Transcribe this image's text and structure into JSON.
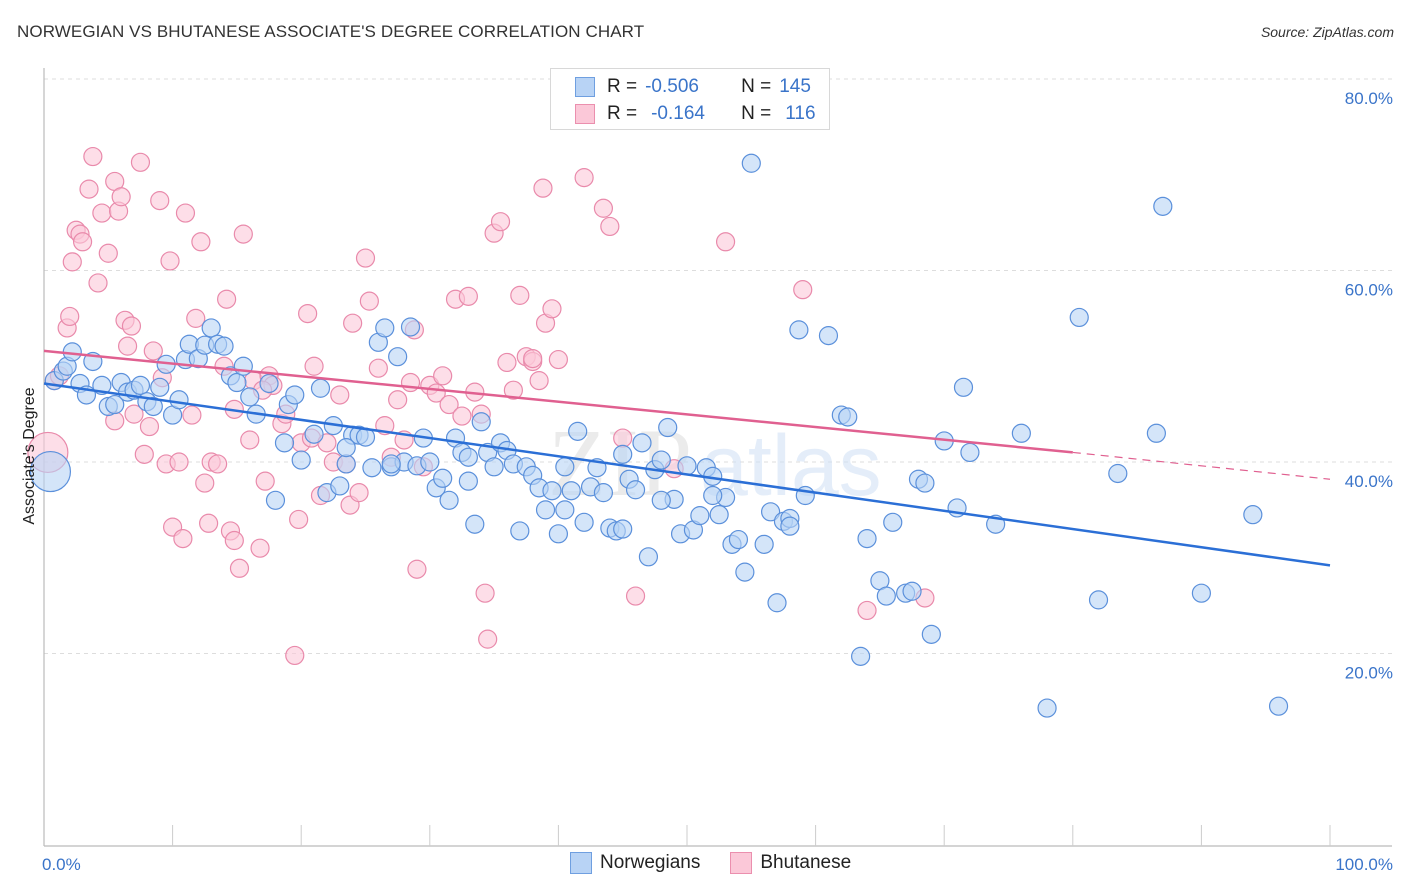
{
  "header": {
    "title": "NORWEGIAN VS BHUTANESE ASSOCIATE'S DEGREE CORRELATION CHART",
    "source": "Source: ZipAtlas.com"
  },
  "legend": {
    "rows": [
      {
        "r_label": "R =",
        "r_value": "-0.506",
        "n_label": "N =",
        "n_value": "145"
      },
      {
        "r_label": "R =",
        "r_value": "-0.164",
        "n_label": "N =",
        "n_value": "116"
      }
    ],
    "bottom": [
      {
        "label": "Norwegians"
      },
      {
        "label": "Bhutanese"
      }
    ]
  },
  "colors": {
    "norwegians_fill": "#b8d3f5",
    "norwegians_stroke": "#5b90db",
    "norwegians_line": "#2b6fd6",
    "bhutanese_fill": "#fbc8d8",
    "bhutanese_stroke": "#e98aab",
    "bhutanese_line": "#e06090",
    "tick_text": "#3a74c9",
    "grid": "#dddddd"
  },
  "watermark": {
    "zip": "ZIP",
    "atlas": "atlas"
  },
  "chart_data": {
    "type": "scatter",
    "title": "NORWEGIAN VS BHUTANESE ASSOCIATE'S DEGREE CORRELATION CHART",
    "xlabel": "",
    "ylabel": "Associate's Degree",
    "xlim": [
      0,
      100
    ],
    "ylim": [
      0,
      82
    ],
    "x_tick_labels": [
      "0.0%",
      "100.0%"
    ],
    "y_ticks": [
      20,
      40,
      60,
      80
    ],
    "y_tick_labels": [
      "20.0%",
      "40.0%",
      "60.0%",
      "80.0%"
    ],
    "grid": true,
    "legend_placement": "top-center",
    "series": [
      {
        "name": "Norwegians",
        "R": -0.506,
        "N": 145,
        "trend": {
          "x": [
            0,
            100
          ],
          "y": [
            48.2,
            29.2
          ],
          "dashed_from": null
        },
        "points": [
          [
            0.5,
            39.0,
            "L"
          ],
          [
            0.8,
            48.5
          ],
          [
            1.5,
            49.5
          ],
          [
            1.8,
            50.0
          ],
          [
            2.2,
            51.5
          ],
          [
            2.8,
            48.2
          ],
          [
            3.3,
            47.0
          ],
          [
            3.8,
            50.5
          ],
          [
            4.5,
            48.0
          ],
          [
            5.0,
            45.8
          ],
          [
            5.5,
            46.0
          ],
          [
            6.0,
            48.3
          ],
          [
            6.5,
            47.3
          ],
          [
            7.0,
            47.5
          ],
          [
            7.5,
            48.0
          ],
          [
            8.0,
            46.3
          ],
          [
            8.5,
            45.8
          ],
          [
            9.0,
            47.8
          ],
          [
            9.5,
            50.2
          ],
          [
            10.0,
            44.9
          ],
          [
            10.5,
            46.5
          ],
          [
            11.0,
            50.7
          ],
          [
            11.3,
            52.3
          ],
          [
            12.0,
            50.8
          ],
          [
            12.5,
            52.2
          ],
          [
            13.0,
            54.0
          ],
          [
            13.5,
            52.3
          ],
          [
            14.0,
            52.1
          ],
          [
            14.5,
            49.0
          ],
          [
            15.0,
            48.3
          ],
          [
            15.5,
            50.0
          ],
          [
            16.0,
            46.8
          ],
          [
            16.5,
            45.0
          ],
          [
            17.5,
            48.2
          ],
          [
            18.0,
            36.0
          ],
          [
            18.7,
            42.0
          ],
          [
            19.0,
            46.0
          ],
          [
            19.5,
            47.0
          ],
          [
            20.0,
            40.2
          ],
          [
            21.0,
            42.9
          ],
          [
            21.5,
            47.7
          ],
          [
            22.0,
            36.8
          ],
          [
            22.5,
            43.8
          ],
          [
            23.0,
            37.5
          ],
          [
            23.5,
            39.8
          ],
          [
            24.0,
            42.8
          ],
          [
            24.5,
            42.8
          ],
          [
            25.0,
            42.6
          ],
          [
            25.5,
            39.4
          ],
          [
            26.0,
            52.5
          ],
          [
            26.5,
            54.0
          ],
          [
            27.0,
            39.5
          ],
          [
            27.5,
            51.0
          ],
          [
            28.0,
            40.0
          ],
          [
            28.5,
            54.1
          ],
          [
            29.0,
            39.6
          ],
          [
            29.5,
            42.5
          ],
          [
            30.0,
            40.0
          ],
          [
            30.5,
            37.3
          ],
          [
            31.0,
            38.3
          ],
          [
            31.5,
            36.0
          ],
          [
            32.0,
            42.5
          ],
          [
            32.5,
            41.0
          ],
          [
            33.0,
            40.5
          ],
          [
            33.5,
            33.5
          ],
          [
            34.0,
            44.2
          ],
          [
            34.5,
            41.0
          ],
          [
            35.0,
            39.5
          ],
          [
            35.5,
            42.0
          ],
          [
            36.0,
            41.2
          ],
          [
            36.5,
            39.8
          ],
          [
            37.0,
            32.8
          ],
          [
            37.5,
            39.5
          ],
          [
            38.0,
            38.6
          ],
          [
            38.5,
            37.3
          ],
          [
            39.0,
            35.0
          ],
          [
            39.5,
            37.0
          ],
          [
            40.0,
            32.5
          ],
          [
            40.5,
            39.5
          ],
          [
            41.0,
            37.0
          ],
          [
            41.5,
            43.2
          ],
          [
            42.0,
            33.7
          ],
          [
            42.5,
            37.4
          ],
          [
            43.0,
            39.4
          ],
          [
            43.5,
            36.8
          ],
          [
            44.0,
            33.1
          ],
          [
            44.5,
            32.8
          ],
          [
            45.0,
            40.8
          ],
          [
            45.5,
            38.2
          ],
          [
            46.0,
            37.1
          ],
          [
            46.5,
            42.0
          ],
          [
            47.0,
            30.1
          ],
          [
            47.5,
            39.2
          ],
          [
            48.0,
            40.2
          ],
          [
            48.5,
            43.6
          ],
          [
            49.0,
            36.1
          ],
          [
            49.5,
            32.5
          ],
          [
            50.0,
            39.6
          ],
          [
            50.5,
            32.9
          ],
          [
            51.0,
            34.4
          ],
          [
            51.5,
            39.4
          ],
          [
            52.0,
            38.5
          ],
          [
            52.5,
            34.5
          ],
          [
            53.0,
            36.3
          ],
          [
            53.5,
            31.4
          ],
          [
            54.0,
            31.9
          ],
          [
            54.5,
            28.5
          ],
          [
            55.0,
            71.2
          ],
          [
            56.5,
            34.8
          ],
          [
            57.0,
            25.3
          ],
          [
            57.5,
            33.8
          ],
          [
            58.0,
            34.1
          ],
          [
            58.7,
            53.8
          ],
          [
            59.2,
            36.5
          ],
          [
            61.0,
            53.2
          ],
          [
            62.0,
            44.9
          ],
          [
            62.5,
            44.7
          ],
          [
            63.5,
            19.7
          ],
          [
            64.0,
            32.0
          ],
          [
            65.0,
            27.6
          ],
          [
            65.5,
            26.0
          ],
          [
            66.0,
            33.7
          ],
          [
            67.0,
            26.3
          ],
          [
            67.5,
            26.5
          ],
          [
            68.0,
            38.2
          ],
          [
            69.0,
            22.0
          ],
          [
            70.0,
            42.2
          ],
          [
            71.0,
            35.2
          ],
          [
            71.5,
            47.8
          ],
          [
            72.0,
            41.0
          ],
          [
            74.0,
            33.5
          ],
          [
            76.0,
            43.0
          ],
          [
            78.0,
            14.3
          ],
          [
            80.5,
            55.1
          ],
          [
            82.0,
            25.6
          ],
          [
            83.5,
            38.8
          ],
          [
            86.5,
            43.0
          ],
          [
            87.0,
            66.7
          ],
          [
            90.0,
            26.3
          ],
          [
            94.0,
            34.5
          ],
          [
            96.0,
            14.5
          ],
          [
            68.5,
            37.8
          ],
          [
            58.0,
            33.3
          ],
          [
            56.0,
            31.4
          ],
          [
            48.0,
            36.0
          ],
          [
            45.0,
            33.0
          ],
          [
            52.0,
            36.5
          ],
          [
            40.5,
            35.0
          ],
          [
            33.0,
            38.0
          ],
          [
            27.0,
            39.8
          ],
          [
            23.5,
            41.5
          ]
        ]
      },
      {
        "name": "Bhutanese",
        "R": -0.164,
        "N": 116,
        "trend": {
          "x": [
            0,
            80,
            100
          ],
          "y": [
            51.6,
            41.0,
            38.2
          ],
          "dashed_from": 80
        },
        "points": [
          [
            0.3,
            41.0,
            "L"
          ],
          [
            0.8,
            48.5
          ],
          [
            1.2,
            49.0
          ],
          [
            1.8,
            54.0
          ],
          [
            2.0,
            55.2
          ],
          [
            2.2,
            60.9
          ],
          [
            2.5,
            64.2
          ],
          [
            2.8,
            63.8
          ],
          [
            3.0,
            63.0
          ],
          [
            3.5,
            68.5
          ],
          [
            3.8,
            71.9
          ],
          [
            4.2,
            58.7
          ],
          [
            4.5,
            66.0
          ],
          [
            5.0,
            61.8
          ],
          [
            5.5,
            69.3
          ],
          [
            5.8,
            66.2
          ],
          [
            6.0,
            67.7
          ],
          [
            6.3,
            54.8
          ],
          [
            6.5,
            52.1
          ],
          [
            6.8,
            54.2
          ],
          [
            7.0,
            45.0
          ],
          [
            7.5,
            71.3
          ],
          [
            7.8,
            40.8
          ],
          [
            8.2,
            43.7
          ],
          [
            8.5,
            51.6
          ],
          [
            9.0,
            67.3
          ],
          [
            9.2,
            48.8
          ],
          [
            9.5,
            39.8
          ],
          [
            9.8,
            61.0
          ],
          [
            10.0,
            33.2
          ],
          [
            10.5,
            40.0
          ],
          [
            10.8,
            32.0
          ],
          [
            11.0,
            66.0
          ],
          [
            11.5,
            44.9
          ],
          [
            11.8,
            55.0
          ],
          [
            12.2,
            63.0
          ],
          [
            12.5,
            37.8
          ],
          [
            12.8,
            33.6
          ],
          [
            13.0,
            40.0
          ],
          [
            13.5,
            39.8
          ],
          [
            14.0,
            50.0
          ],
          [
            14.2,
            57.0
          ],
          [
            14.5,
            32.8
          ],
          [
            14.8,
            31.8
          ],
          [
            15.2,
            28.9
          ],
          [
            15.5,
            63.8
          ],
          [
            16.0,
            42.3
          ],
          [
            16.3,
            48.5
          ],
          [
            16.8,
            31.0
          ],
          [
            17.2,
            38.0
          ],
          [
            17.5,
            49.0
          ],
          [
            17.8,
            48.0
          ],
          [
            18.5,
            44.0
          ],
          [
            18.8,
            45.0
          ],
          [
            19.5,
            19.8
          ],
          [
            19.8,
            34.0
          ],
          [
            20.0,
            42.0
          ],
          [
            20.5,
            55.5
          ],
          [
            20.8,
            42.5
          ],
          [
            21.5,
            36.5
          ],
          [
            22.0,
            42.0
          ],
          [
            22.5,
            40.0
          ],
          [
            23.0,
            47.0
          ],
          [
            23.5,
            39.8
          ],
          [
            23.8,
            35.5
          ],
          [
            24.0,
            54.5
          ],
          [
            24.5,
            36.8
          ],
          [
            25.0,
            61.3
          ],
          [
            25.3,
            56.8
          ],
          [
            26.0,
            49.8
          ],
          [
            26.5,
            43.8
          ],
          [
            27.0,
            40.5
          ],
          [
            28.0,
            42.3
          ],
          [
            28.5,
            48.3
          ],
          [
            28.8,
            53.8
          ],
          [
            29.0,
            28.8
          ],
          [
            29.5,
            39.5
          ],
          [
            30.0,
            48.0
          ],
          [
            30.5,
            47.2
          ],
          [
            31.0,
            49.0
          ],
          [
            31.5,
            46.0
          ],
          [
            32.0,
            57.0
          ],
          [
            32.5,
            44.8
          ],
          [
            33.0,
            57.3
          ],
          [
            33.5,
            47.3
          ],
          [
            34.0,
            45.0
          ],
          [
            34.3,
            26.3
          ],
          [
            34.5,
            21.5
          ],
          [
            35.0,
            63.9
          ],
          [
            35.5,
            65.1
          ],
          [
            36.0,
            50.4
          ],
          [
            36.5,
            47.5
          ],
          [
            37.0,
            57.4
          ],
          [
            37.5,
            51.0
          ],
          [
            38.0,
            50.5
          ],
          [
            38.5,
            48.5
          ],
          [
            38.8,
            68.6
          ],
          [
            39.0,
            54.5
          ],
          [
            39.5,
            56.0
          ],
          [
            40.0,
            50.7
          ],
          [
            42.0,
            69.7
          ],
          [
            43.5,
            66.5
          ],
          [
            44.0,
            64.6
          ],
          [
            45.0,
            42.5
          ],
          [
            46.0,
            26.0
          ],
          [
            49.0,
            39.3
          ],
          [
            53.0,
            63.0
          ],
          [
            59.0,
            58.0
          ],
          [
            64.0,
            24.5
          ],
          [
            68.5,
            25.8
          ],
          [
            38.0,
            50.8
          ],
          [
            17.0,
            47.5
          ],
          [
            21.0,
            50.0
          ],
          [
            27.5,
            46.5
          ],
          [
            14.8,
            45.5
          ],
          [
            5.5,
            44.3
          ]
        ]
      }
    ]
  }
}
